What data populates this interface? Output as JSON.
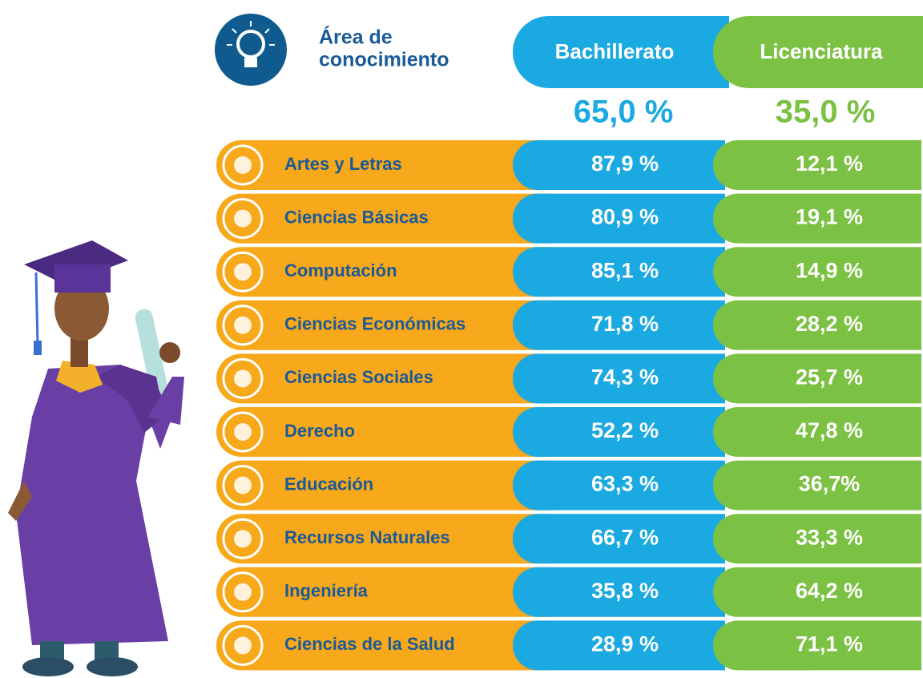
{
  "header": {
    "title": [
      "Área de",
      "conocimiento"
    ],
    "columns": [
      "Bachillerato",
      "Licenciatura"
    ],
    "totals": [
      "65,0 %",
      "35,0 %"
    ]
  },
  "rows": [
    {
      "area": "Artes y Letras",
      "bachillerato": "87,9 %",
      "licenciatura": "12,1 %"
    },
    {
      "area": "Ciencias Básicas",
      "bachillerato": "80,9 %",
      "licenciatura": "19,1 %"
    },
    {
      "area": "Computación",
      "bachillerato": "85,1 %",
      "licenciatura": "14,9 %"
    },
    {
      "area": "Ciencias Económicas",
      "bachillerato": "71,8 %",
      "licenciatura": "28,2 %"
    },
    {
      "area": "Ciencias Sociales",
      "bachillerato": "74,3 %",
      "licenciatura": "25,7 %"
    },
    {
      "area": "Derecho",
      "bachillerato": "52,2 %",
      "licenciatura": "47,8 %"
    },
    {
      "area": "Educación",
      "bachillerato": "63,3 %",
      "licenciatura": "36,7%"
    },
    {
      "area": "Recursos Naturales",
      "bachillerato": "66,7 %",
      "licenciatura": "33,3 %"
    },
    {
      "area": "Ingeniería",
      "bachillerato": "35,8 %",
      "licenciatura": "64,2 %"
    },
    {
      "area": "Ciencias de la Salud",
      "bachillerato": "28,9 %",
      "licenciatura": "71,1 %"
    }
  ]
}
